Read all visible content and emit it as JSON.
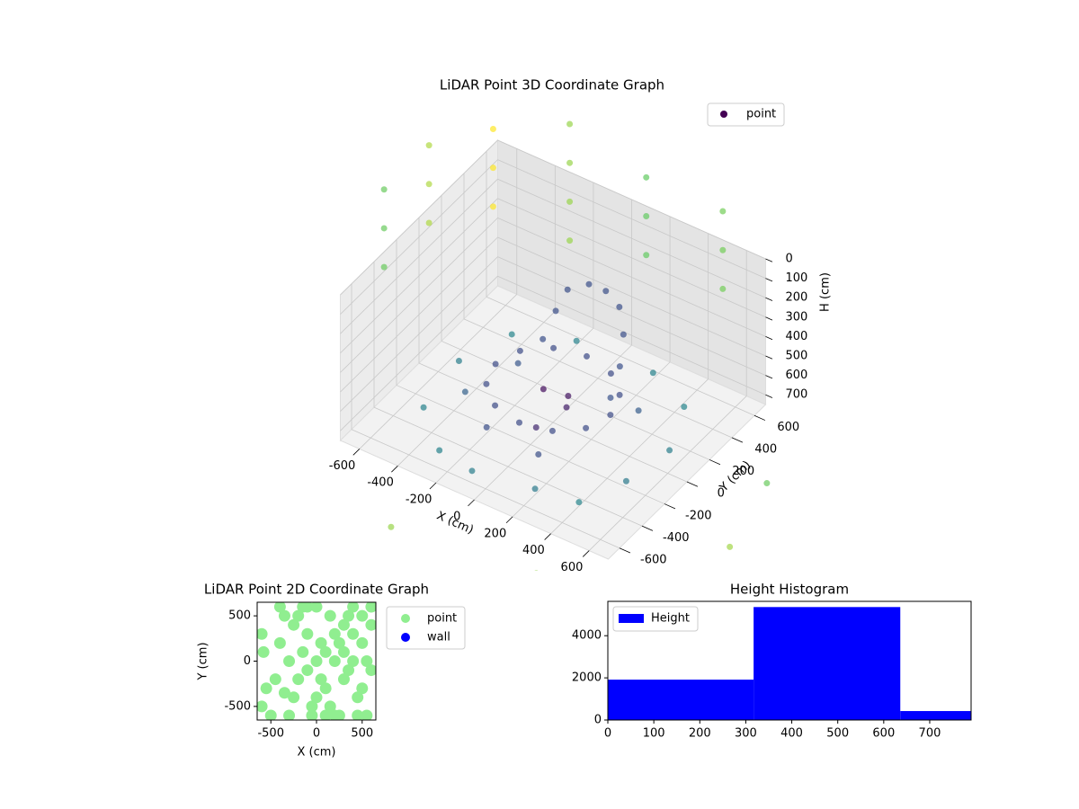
{
  "chart_data": [
    {
      "type": "scatter3d",
      "title": "LiDAR Point 3D Coordinate Graph",
      "xlabel": "X (cm)",
      "ylabel": "Y (cm)",
      "zlabel": "H (cm)",
      "xlim": [
        -700,
        700
      ],
      "ylim": [
        -700,
        700
      ],
      "zlim": [
        750,
        0
      ],
      "xticks": [
        -600,
        -400,
        -200,
        0,
        200,
        400,
        600
      ],
      "yticks": [
        -600,
        -400,
        -200,
        0,
        200,
        400,
        600
      ],
      "zticks": [
        0,
        100,
        200,
        300,
        400,
        500,
        600,
        700
      ],
      "colormap": "viridis",
      "legend": "upper right",
      "grid": true,
      "series": [
        {
          "name": "point",
          "color": "#440154",
          "x": [
            300,
            260,
            150,
            0,
            -150,
            -260,
            -300,
            -260,
            -150,
            0,
            150,
            260,
            -200,
            -150,
            -100,
            0,
            100,
            200,
            280,
            320,
            330,
            -50,
            50,
            100,
            -500,
            -300,
            -100,
            200,
            400,
            500,
            550,
            450,
            200,
            -200,
            -450,
            -550,
            -400,
            100,
            -200,
            300,
            -300,
            0,
            900,
            1100,
            -900,
            500,
            1000,
            -200,
            -900,
            -900,
            -900,
            -900,
            -500,
            -500,
            -500,
            -500,
            -100,
            -100,
            -100,
            300,
            300,
            300,
            -1000,
            -1000,
            -1000,
            -1000,
            -1000,
            -1000
          ],
          "y": [
            0,
            150,
            260,
            300,
            260,
            150,
            0,
            -150,
            -260,
            -300,
            -260,
            -150,
            250,
            280,
            300,
            320,
            300,
            250,
            150,
            50,
            -50,
            0,
            50,
            -50,
            -300,
            -500,
            -550,
            -500,
            -450,
            -200,
            100,
            400,
            550,
            550,
            400,
            100,
            -100,
            -300,
            -250,
            250,
            200,
            -150,
            -800,
            -300,
            -900,
            -1000,
            200,
            -1100,
            1000,
            1000,
            1000,
            1000,
            1000,
            1000,
            1000,
            1000,
            1000,
            1000,
            1000,
            1000,
            1000,
            1000,
            600,
            600,
            600,
            200,
            200,
            200
          ],
          "z": [
            580,
            580,
            580,
            580,
            580,
            580,
            580,
            580,
            580,
            580,
            580,
            580,
            550,
            400,
            280,
            220,
            200,
            210,
            260,
            350,
            450,
            600,
            620,
            600,
            720,
            740,
            730,
            720,
            730,
            720,
            710,
            700,
            720,
            730,
            720,
            730,
            710,
            700,
            720,
            700,
            690,
            690,
            750,
            740,
            750,
            740,
            740,
            750,
            0,
            200,
            400,
            600,
            0,
            200,
            400,
            600,
            100,
            300,
            500,
            100,
            300,
            500,
            100,
            300,
            500,
            100,
            300,
            500
          ]
        }
      ]
    },
    {
      "type": "scatter",
      "title": "LiDAR Point 2D Coordinate Graph",
      "xlabel": "X (cm)",
      "ylabel": "Y (cm)",
      "xlim": [
        -650,
        650
      ],
      "ylim": [
        -650,
        650
      ],
      "xticks": [
        -500,
        0,
        500
      ],
      "yticks": [
        -500,
        0,
        500
      ],
      "legend": "outside upper right",
      "series": [
        {
          "name": "point",
          "color": "#90ee90",
          "x": [
            -600,
            -550,
            -500,
            -600,
            -580,
            -400,
            -350,
            -300,
            -250,
            -200,
            -150,
            -100,
            -50,
            0,
            50,
            100,
            150,
            200,
            250,
            300,
            350,
            400,
            450,
            500,
            550,
            600,
            -300,
            -200,
            -100,
            0,
            100,
            200,
            300,
            400,
            500,
            600,
            -250,
            -150,
            -50,
            50,
            150,
            250,
            350,
            450,
            550,
            -350,
            -450,
            -400,
            0,
            200,
            400,
            600,
            -100,
            100,
            300,
            500
          ],
          "y": [
            300,
            -300,
            -600,
            -500,
            100,
            600,
            500,
            -600,
            400,
            -200,
            600,
            300,
            -500,
            600,
            200,
            -300,
            500,
            0,
            -600,
            400,
            -100,
            600,
            -400,
            200,
            -600,
            400,
            0,
            500,
            -100,
            -400,
            100,
            300,
            -200,
            0,
            -300,
            -100,
            -400,
            100,
            -600,
            -200,
            -500,
            200,
            500,
            -600,
            0,
            -350,
            -200,
            200,
            0,
            -600,
            300,
            600,
            600,
            -600,
            100,
            500
          ]
        },
        {
          "name": "wall",
          "color": "#0000ff",
          "x": [],
          "y": []
        }
      ]
    },
    {
      "type": "histogram",
      "title": "Height Histogram",
      "name": "Height",
      "color": "#0000ff",
      "bins": [
        0,
        317,
        636,
        790
      ],
      "values": [
        1915,
        5360,
        425
      ],
      "xlim": [
        0,
        790
      ],
      "ylim": [
        0,
        5630
      ],
      "xticks": [
        0,
        100,
        200,
        300,
        400,
        500,
        600,
        700
      ],
      "yticks": [
        0,
        2000,
        4000
      ],
      "legend": "upper left"
    }
  ]
}
